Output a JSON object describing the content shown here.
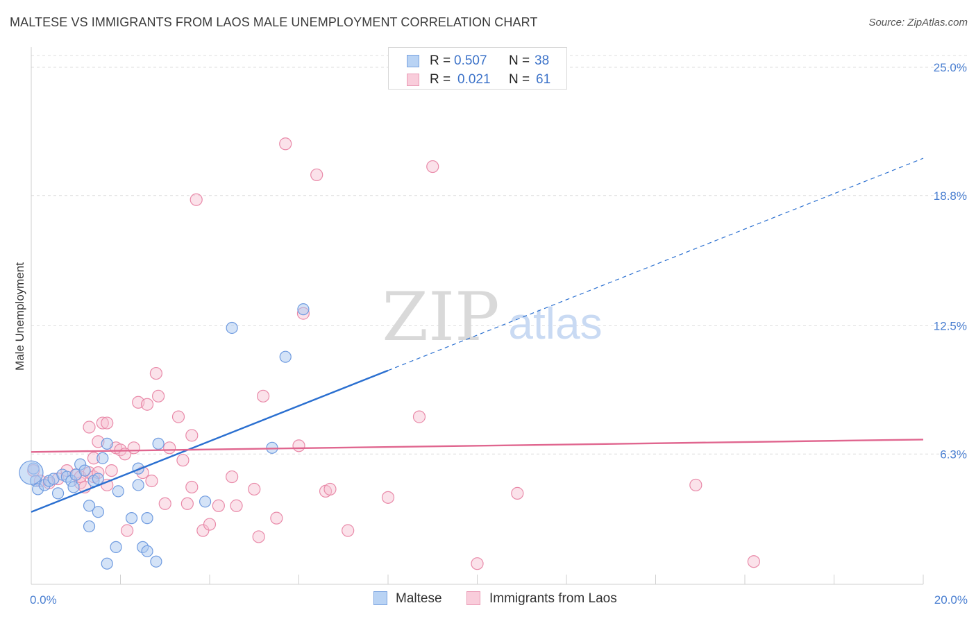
{
  "header": {
    "title": "MALTESE VS IMMIGRANTS FROM LAOS MALE UNEMPLOYMENT CORRELATION CHART",
    "source": "Source: ZipAtlas.com"
  },
  "watermark": {
    "zip": "ZIP",
    "atlas": "atlas"
  },
  "legend": {
    "rows": [
      {
        "r_label": "R =",
        "r_value": "0.507",
        "n_label": "N =",
        "n_value": "38"
      },
      {
        "r_label": "R =",
        "r_value": "0.021",
        "n_label": "N =",
        "n_value": "61"
      }
    ]
  },
  "bottom_legend": {
    "series1": "Maltese",
    "series2": "Immigrants from Laos"
  },
  "colors": {
    "blue_fill": "#a9c8f0",
    "blue_stroke": "#6f9be0",
    "blue_line": "#2a6fd0",
    "pink_fill": "#f6bfd0",
    "pink_stroke": "#e98aa9",
    "pink_line": "#e0668f",
    "axis_text": "#4a7fd1",
    "grid": "#dcdcdc"
  },
  "chart_data": {
    "type": "scatter",
    "title": "MALTESE VS IMMIGRANTS FROM LAOS MALE UNEMPLOYMENT CORRELATION CHART",
    "xlabel": "",
    "ylabel": "Male Unemployment",
    "xlim": [
      0,
      20
    ],
    "ylim": [
      0,
      25.5
    ],
    "x_tick_labels": [
      {
        "value": 0,
        "label": "0.0%"
      },
      {
        "value": 20,
        "label": "20.0%"
      }
    ],
    "y_tick_labels": [
      {
        "value": 6.3,
        "label": "6.3%"
      },
      {
        "value": 12.5,
        "label": "12.5%"
      },
      {
        "value": 18.8,
        "label": "18.8%"
      },
      {
        "value": 25.0,
        "label": "25.0%"
      }
    ],
    "series": [
      {
        "name": "Maltese",
        "R": 0.507,
        "N": 38,
        "trend": {
          "x0": 0,
          "y0": 3.5,
          "x1": 20,
          "y1": 20.6,
          "solid_until_x": 8.0
        },
        "points": [
          [
            0.05,
            5.6
          ],
          [
            0.1,
            5.0
          ],
          [
            0.15,
            4.6
          ],
          [
            0.3,
            4.8
          ],
          [
            0.4,
            5.0
          ],
          [
            0.5,
            5.1
          ],
          [
            0.6,
            4.4
          ],
          [
            0.7,
            5.3
          ],
          [
            0.8,
            5.2
          ],
          [
            0.9,
            5.0
          ],
          [
            0.95,
            4.7
          ],
          [
            1.0,
            5.3
          ],
          [
            1.1,
            5.8
          ],
          [
            1.2,
            5.5
          ],
          [
            1.3,
            3.8
          ],
          [
            1.3,
            2.8
          ],
          [
            1.4,
            5.0
          ],
          [
            1.5,
            5.1
          ],
          [
            1.5,
            3.5
          ],
          [
            1.6,
            6.1
          ],
          [
            1.7,
            1.0
          ],
          [
            1.7,
            6.8
          ],
          [
            1.9,
            1.8
          ],
          [
            1.95,
            4.5
          ],
          [
            2.25,
            3.2
          ],
          [
            2.4,
            5.6
          ],
          [
            2.4,
            4.8
          ],
          [
            2.5,
            1.8
          ],
          [
            2.6,
            3.2
          ],
          [
            2.6,
            1.6
          ],
          [
            2.8,
            1.1
          ],
          [
            2.85,
            6.8
          ],
          [
            3.9,
            4.0
          ],
          [
            4.5,
            12.4
          ],
          [
            5.4,
            6.6
          ],
          [
            5.7,
            11.0
          ],
          [
            6.1,
            13.3
          ],
          [
            0.0,
            5.4
          ]
        ]
      },
      {
        "name": "Immigrants from Laos",
        "R": 0.021,
        "N": 61,
        "trend": {
          "x0": 0,
          "y0": 6.4,
          "x1": 20,
          "y1": 7.0,
          "solid_until_x": 20
        },
        "points": [
          [
            0.05,
            5.5
          ],
          [
            0.2,
            5.0
          ],
          [
            0.4,
            4.9
          ],
          [
            0.6,
            5.1
          ],
          [
            0.8,
            5.5
          ],
          [
            1.0,
            5.3
          ],
          [
            1.1,
            4.9
          ],
          [
            1.1,
            5.2
          ],
          [
            1.2,
            4.7
          ],
          [
            1.3,
            5.4
          ],
          [
            1.3,
            7.6
          ],
          [
            1.4,
            6.1
          ],
          [
            1.4,
            5.2
          ],
          [
            1.5,
            6.9
          ],
          [
            1.5,
            5.4
          ],
          [
            1.6,
            7.8
          ],
          [
            1.7,
            4.8
          ],
          [
            1.7,
            7.8
          ],
          [
            1.8,
            5.5
          ],
          [
            1.9,
            6.6
          ],
          [
            2.0,
            6.5
          ],
          [
            2.1,
            6.3
          ],
          [
            2.15,
            2.6
          ],
          [
            2.3,
            6.6
          ],
          [
            2.4,
            8.8
          ],
          [
            2.5,
            5.4
          ],
          [
            2.6,
            8.7
          ],
          [
            2.7,
            5.0
          ],
          [
            2.8,
            10.2
          ],
          [
            2.85,
            9.1
          ],
          [
            3.0,
            3.9
          ],
          [
            3.1,
            6.6
          ],
          [
            3.3,
            8.1
          ],
          [
            3.4,
            6.0
          ],
          [
            3.5,
            3.9
          ],
          [
            3.6,
            4.7
          ],
          [
            3.6,
            7.2
          ],
          [
            3.7,
            18.6
          ],
          [
            3.85,
            2.6
          ],
          [
            4.0,
            2.9
          ],
          [
            4.2,
            3.8
          ],
          [
            4.5,
            5.2
          ],
          [
            4.6,
            3.8
          ],
          [
            5.0,
            4.6
          ],
          [
            5.1,
            2.3
          ],
          [
            5.2,
            9.1
          ],
          [
            5.5,
            3.2
          ],
          [
            5.7,
            21.3
          ],
          [
            6.0,
            6.7
          ],
          [
            6.1,
            13.1
          ],
          [
            6.4,
            19.8
          ],
          [
            6.6,
            4.5
          ],
          [
            6.7,
            4.6
          ],
          [
            7.1,
            2.6
          ],
          [
            8.0,
            4.2
          ],
          [
            8.7,
            8.1
          ],
          [
            9.0,
            20.2
          ],
          [
            10.0,
            1.0
          ],
          [
            10.9,
            4.4
          ],
          [
            14.9,
            4.8
          ],
          [
            16.2,
            1.1
          ]
        ]
      }
    ]
  }
}
